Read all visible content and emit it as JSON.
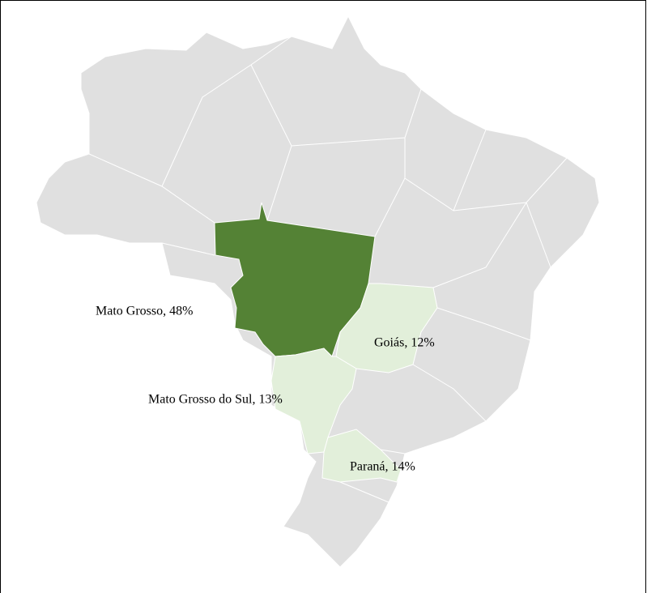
{
  "map": {
    "base_color": "#e0e0e0",
    "regions": [
      {
        "label": "Mato Grosso, 48%",
        "color": "#548235"
      },
      {
        "label": "Goiás, 12%",
        "color": "#e2efda"
      },
      {
        "label": "Mato Grosso do Sul, 13%",
        "color": "#e2efda"
      },
      {
        "label": "Paraná, 14%",
        "color": "#e2efda"
      }
    ]
  }
}
